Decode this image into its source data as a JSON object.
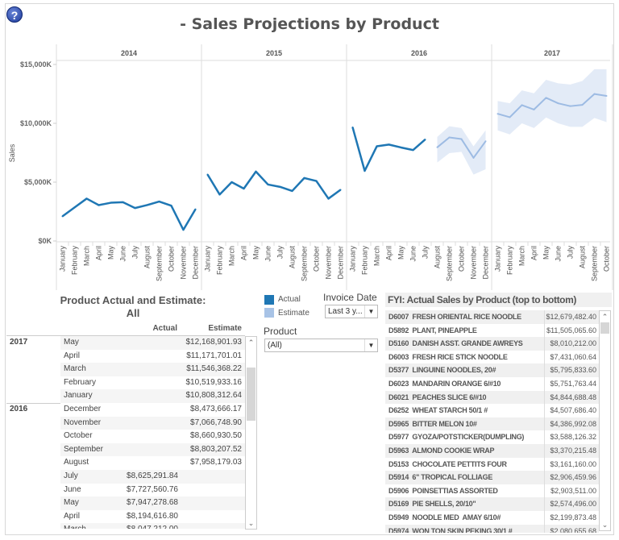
{
  "title": "- Sales Projections by Product",
  "help_icon": "question-circle-icon",
  "chart_data": {
    "type": "line",
    "ylabel": "Sales",
    "ylim": [
      0,
      15000000
    ],
    "yticks": [
      "$0K",
      "$5,000K",
      "$10,000K",
      "$15,000K"
    ],
    "ytick_values": [
      0,
      5000000,
      10000000,
      15000000
    ],
    "grid": false,
    "colors": {
      "actual": "#1f77b4",
      "estimate": "#9dbbe3",
      "band": "#e3ebf7"
    },
    "panels": [
      {
        "year": "2014",
        "months": [
          "January",
          "February",
          "March",
          "April",
          "May",
          "June",
          "July",
          "August",
          "September",
          "October",
          "November",
          "December"
        ],
        "actual": [
          2100000,
          2850000,
          3600000,
          3050000,
          3250000,
          3300000,
          2800000,
          3050000,
          3350000,
          3000000,
          950000,
          2700000
        ]
      },
      {
        "year": "2015",
        "months": [
          "January",
          "February",
          "March",
          "April",
          "May",
          "June",
          "July",
          "August",
          "September",
          "October",
          "November",
          "December"
        ],
        "actual": [
          5650000,
          3950000,
          5000000,
          4450000,
          5900000,
          4800000,
          4600000,
          4250000,
          5350000,
          5100000,
          3600000,
          4350000
        ]
      },
      {
        "year": "2016",
        "months": [
          "January",
          "February",
          "March",
          "April",
          "May",
          "June",
          "July",
          "August",
          "September",
          "October",
          "November",
          "December"
        ],
        "actual": [
          9660000,
          5960000,
          8047212,
          8194617,
          7947279,
          7727561,
          8625292,
          null,
          null,
          null,
          null,
          null
        ],
        "estimate": [
          null,
          null,
          null,
          null,
          null,
          null,
          null,
          7958179,
          8803208,
          8660931,
          7066749,
          8473666
        ],
        "lower": [
          null,
          null,
          null,
          null,
          null,
          null,
          null,
          6670000,
          7470000,
          7580000,
          5640000,
          6100000
        ],
        "upper": [
          null,
          null,
          null,
          null,
          null,
          null,
          null,
          8840000,
          9750000,
          9600000,
          8040000,
          9400000
        ]
      },
      {
        "year": "2017",
        "months": [
          "January",
          "February",
          "March",
          "April",
          "May",
          "June",
          "July",
          "August",
          "September",
          "October"
        ],
        "estimate": [
          10808313,
          10519933,
          11546368,
          11171701,
          12168902,
          11700000,
          11460000,
          11570000,
          12490000,
          12330000
        ],
        "lower": [
          9400000,
          9060000,
          10000000,
          9600000,
          10500000,
          10000000,
          9700000,
          9700000,
          10450000,
          10100000
        ],
        "upper": [
          11900000,
          11700000,
          12800000,
          12550000,
          13700000,
          13400000,
          13300000,
          13600000,
          14600000,
          14600000
        ]
      }
    ]
  },
  "legend": {
    "actual": "Actual",
    "estimate": "Estimate"
  },
  "filters": {
    "invoice_label": "Invoice Date",
    "invoice_value": "Last 3 y...",
    "product_label": "Product",
    "product_value": "(All)"
  },
  "left_table": {
    "title1": "Product Actual and Estimate:",
    "title2": "All",
    "col_actual": "Actual",
    "col_estimate": "Estimate",
    "rows": [
      {
        "year": "2017",
        "month": "May",
        "actual": "",
        "estimate": "$12,168,901.93"
      },
      {
        "year": "",
        "month": "April",
        "actual": "",
        "estimate": "$11,171,701.01"
      },
      {
        "year": "",
        "month": "March",
        "actual": "",
        "estimate": "$11,546,368.22"
      },
      {
        "year": "",
        "month": "February",
        "actual": "",
        "estimate": "$10,519,933.16"
      },
      {
        "year": "",
        "month": "January",
        "actual": "",
        "estimate": "$10,808,312.64"
      },
      {
        "year": "2016",
        "month": "December",
        "actual": "",
        "estimate": "$8,473,666.17"
      },
      {
        "year": "",
        "month": "November",
        "actual": "",
        "estimate": "$7,066,748.90"
      },
      {
        "year": "",
        "month": "October",
        "actual": "",
        "estimate": "$8,660,930.50"
      },
      {
        "year": "",
        "month": "September",
        "actual": "",
        "estimate": "$8,803,207.52"
      },
      {
        "year": "",
        "month": "August",
        "actual": "",
        "estimate": "$7,958,179.03"
      },
      {
        "year": "",
        "month": "July",
        "actual": "$8,625,291.84",
        "estimate": ""
      },
      {
        "year": "",
        "month": "June",
        "actual": "$7,727,560.76",
        "estimate": ""
      },
      {
        "year": "",
        "month": "May",
        "actual": "$7,947,278.68",
        "estimate": ""
      },
      {
        "year": "",
        "month": "April",
        "actual": "$8,194,616.80",
        "estimate": ""
      },
      {
        "year": "",
        "month": "March",
        "actual": "$8,047,212.00",
        "estimate": ""
      }
    ]
  },
  "right_table": {
    "title": "FYI: Actual Sales by Product (top to bottom)",
    "rows": [
      {
        "product": "D6007  FRESH ORIENTAL RICE NOODLE",
        "sales": "$12,679,482.40"
      },
      {
        "product": "D5892  PLANT, PINEAPPLE",
        "sales": "$11,505,065.60"
      },
      {
        "product": "D5160  DANISH ASST. GRANDE AWREYS",
        "sales": "$8,010,212.00"
      },
      {
        "product": "D6003  FRESH RICE STICK NOODLE",
        "sales": "$7,431,060.64"
      },
      {
        "product": "D5377  LINGUINE NOODLES, 20#",
        "sales": "$5,795,833.60"
      },
      {
        "product": "D6023  MANDARIN ORANGE 6/#10",
        "sales": "$5,751,763.44"
      },
      {
        "product": "D6021  PEACHES SLICE 6/#10",
        "sales": "$4,844,688.48"
      },
      {
        "product": "D6252  WHEAT STARCH 50/1 #",
        "sales": "$4,507,686.40"
      },
      {
        "product": "D5965  BITTER MELON 10#",
        "sales": "$4,386,992.08"
      },
      {
        "product": "D5977  GYOZA/POTSTICKER(DUMPLING)",
        "sales": "$3,588,126.32"
      },
      {
        "product": "D5963  ALMOND COOKIE WRAP",
        "sales": "$3,370,215.48"
      },
      {
        "product": "D5153  CHOCOLATE PETTITS FOUR",
        "sales": "$3,161,160.00"
      },
      {
        "product": "D5914  6\" TROPICAL FOLLIAGE",
        "sales": "$2,906,459.96"
      },
      {
        "product": "D5906  POINSETTIAS ASSORTED",
        "sales": "$2,903,511.00"
      },
      {
        "product": "D5169  PIE SHELLS, 20/10\"",
        "sales": "$2,574,496.00"
      },
      {
        "product": "D5949  NOODLE MED  AMAY 6/10#",
        "sales": "$2,199,873.48"
      },
      {
        "product": "D5974  WON TON SKIN PEKING 30/1 #",
        "sales": "$2,080,655.68"
      }
    ]
  }
}
